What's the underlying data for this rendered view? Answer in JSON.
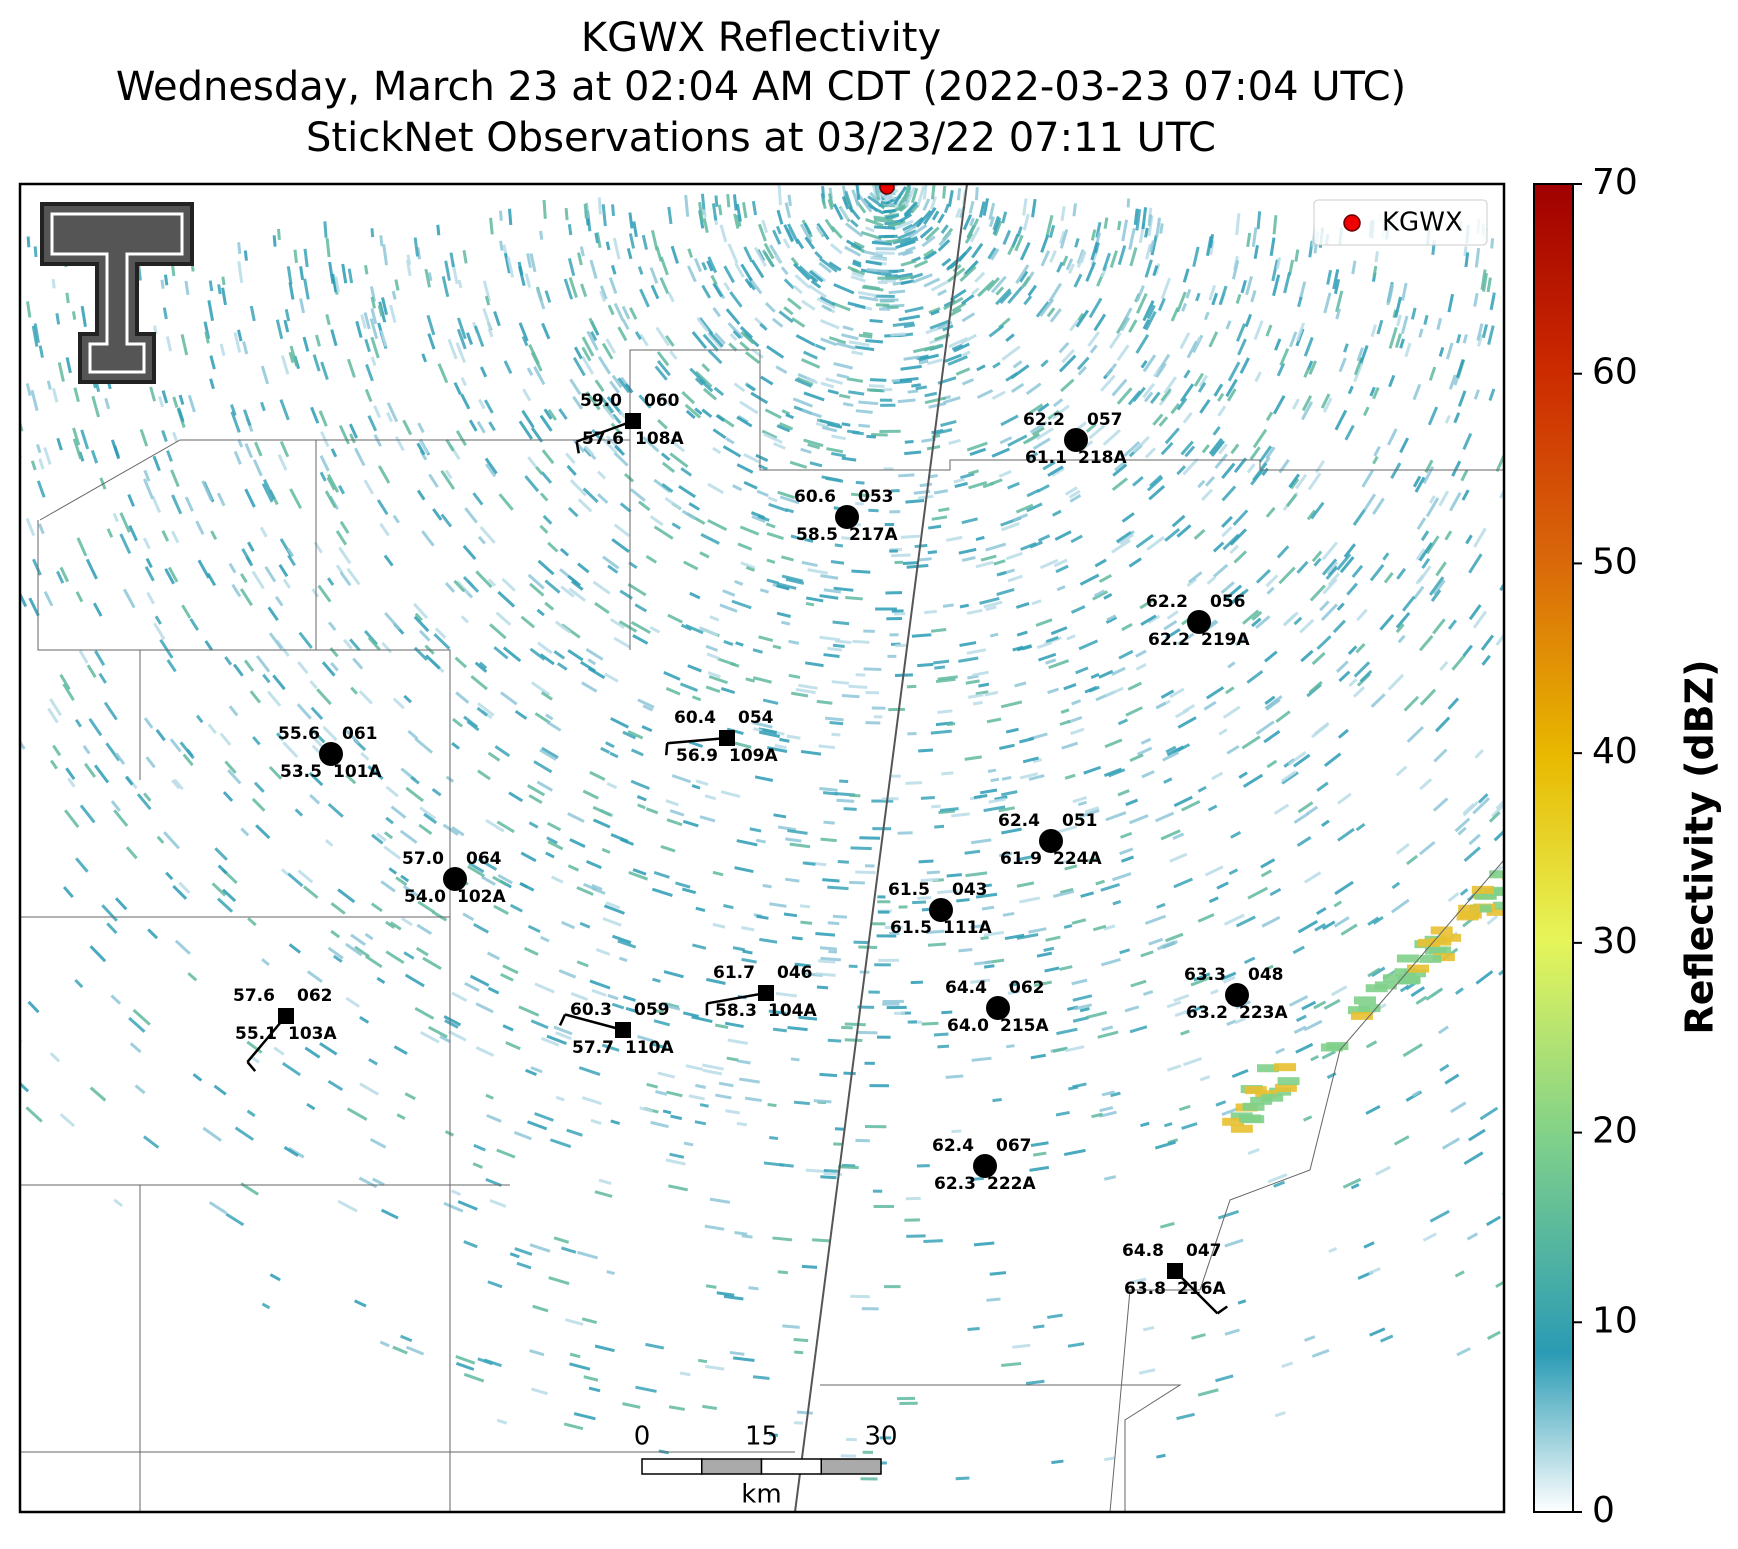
{
  "title": [
    "KGWX Reflectivity",
    "Wednesday, March 23 at 02:04 AM CDT (2022-03-23 07:04 UTC)",
    "StickNet Observations at 03/23/22 07:11 UTC"
  ],
  "legend": "KGWX",
  "stations": [
    {
      "id": "108A",
      "temperature": "59.0",
      "dewpoint": "57.6",
      "pressure": "060"
    },
    {
      "id": "217A",
      "temperature": "60.6",
      "dewpoint": "58.5",
      "pressure": "053"
    },
    {
      "id": "218A",
      "temperature": "62.2",
      "dewpoint": "61.1",
      "pressure": "057"
    },
    {
      "id": "219A",
      "temperature": "62.2",
      "dewpoint": "62.2",
      "pressure": "056"
    },
    {
      "id": "101A",
      "temperature": "55.6",
      "dewpoint": "53.5",
      "pressure": "061"
    },
    {
      "id": "109A",
      "temperature": "60.4",
      "dewpoint": "56.9",
      "pressure": "054"
    },
    {
      "id": "224A",
      "temperature": "62.4",
      "dewpoint": "61.9",
      "pressure": "051"
    },
    {
      "id": "102A",
      "temperature": "57.0",
      "dewpoint": "54.0",
      "pressure": "064"
    },
    {
      "id": "111A",
      "temperature": "61.5",
      "dewpoint": "61.5",
      "pressure": "043"
    },
    {
      "id": "103A",
      "temperature": "57.6",
      "dewpoint": "55.1",
      "pressure": "062"
    },
    {
      "id": "110A",
      "temperature": "60.3",
      "dewpoint": "57.7",
      "pressure": "059"
    },
    {
      "id": "104A",
      "temperature": "61.7",
      "dewpoint": "58.3",
      "pressure": "046"
    },
    {
      "id": "215A",
      "temperature": "64.4",
      "dewpoint": "64.0",
      "pressure": "062"
    },
    {
      "id": "223A",
      "temperature": "63.3",
      "dewpoint": "63.2",
      "pressure": "048"
    },
    {
      "id": "222A",
      "temperature": "62.4",
      "dewpoint": "62.3",
      "pressure": "067"
    },
    {
      "id": "216A",
      "temperature": "64.8",
      "dewpoint": "63.8",
      "pressure": "047"
    }
  ],
  "scale_bar": {
    "ticks": [
      0,
      15,
      30
    ],
    "unit": "km"
  },
  "colorbar": {
    "label": "Reflectivity (dBZ)",
    "lim": [
      0,
      70
    ],
    "ticks": [
      0,
      10,
      20,
      30,
      40,
      50,
      60,
      70
    ]
  }
}
